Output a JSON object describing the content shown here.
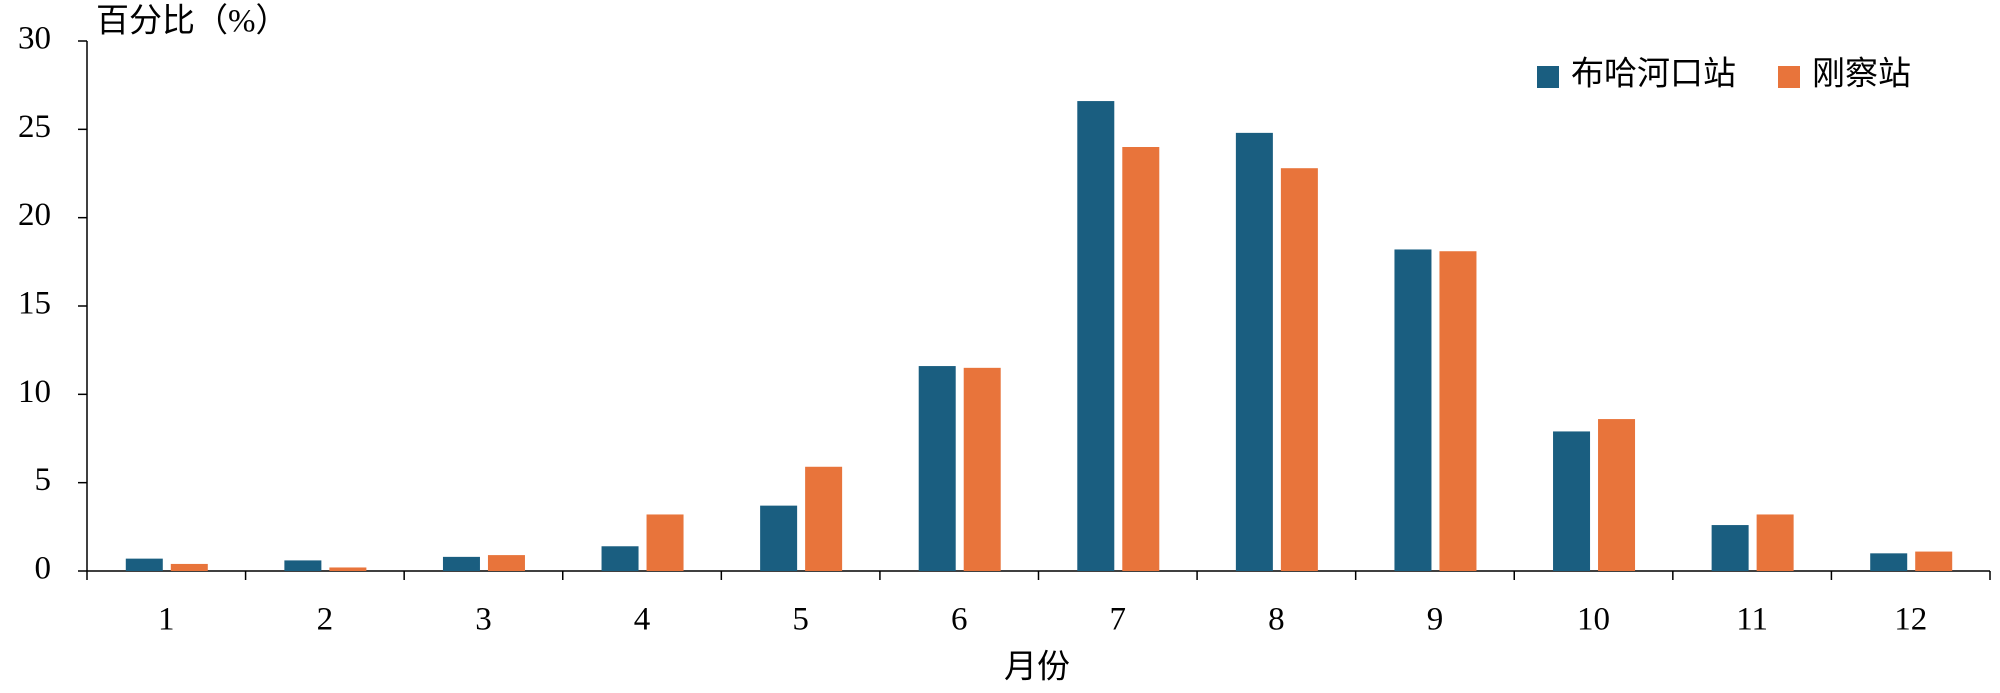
{
  "chart_data": {
    "type": "bar",
    "y_label": "百分比（%）",
    "x_label": "月份",
    "categories": [
      "1",
      "2",
      "3",
      "4",
      "5",
      "6",
      "7",
      "8",
      "9",
      "10",
      "11",
      "12"
    ],
    "series": [
      {
        "name": "布哈河口站",
        "color": "#1a5e80",
        "values": [
          0.7,
          0.6,
          0.8,
          1.4,
          3.7,
          11.6,
          26.6,
          24.8,
          18.2,
          7.9,
          2.6,
          1.0
        ]
      },
      {
        "name": "刚察站",
        "color": "#e8743b",
        "values": [
          0.4,
          0.2,
          0.9,
          3.2,
          5.9,
          11.5,
          24.0,
          22.8,
          18.1,
          8.6,
          3.2,
          1.1
        ]
      }
    ],
    "ylim": [
      0,
      30
    ],
    "yticks": [
      0,
      5,
      10,
      15,
      20,
      25,
      30
    ],
    "grid": false,
    "legend": "upper right"
  }
}
